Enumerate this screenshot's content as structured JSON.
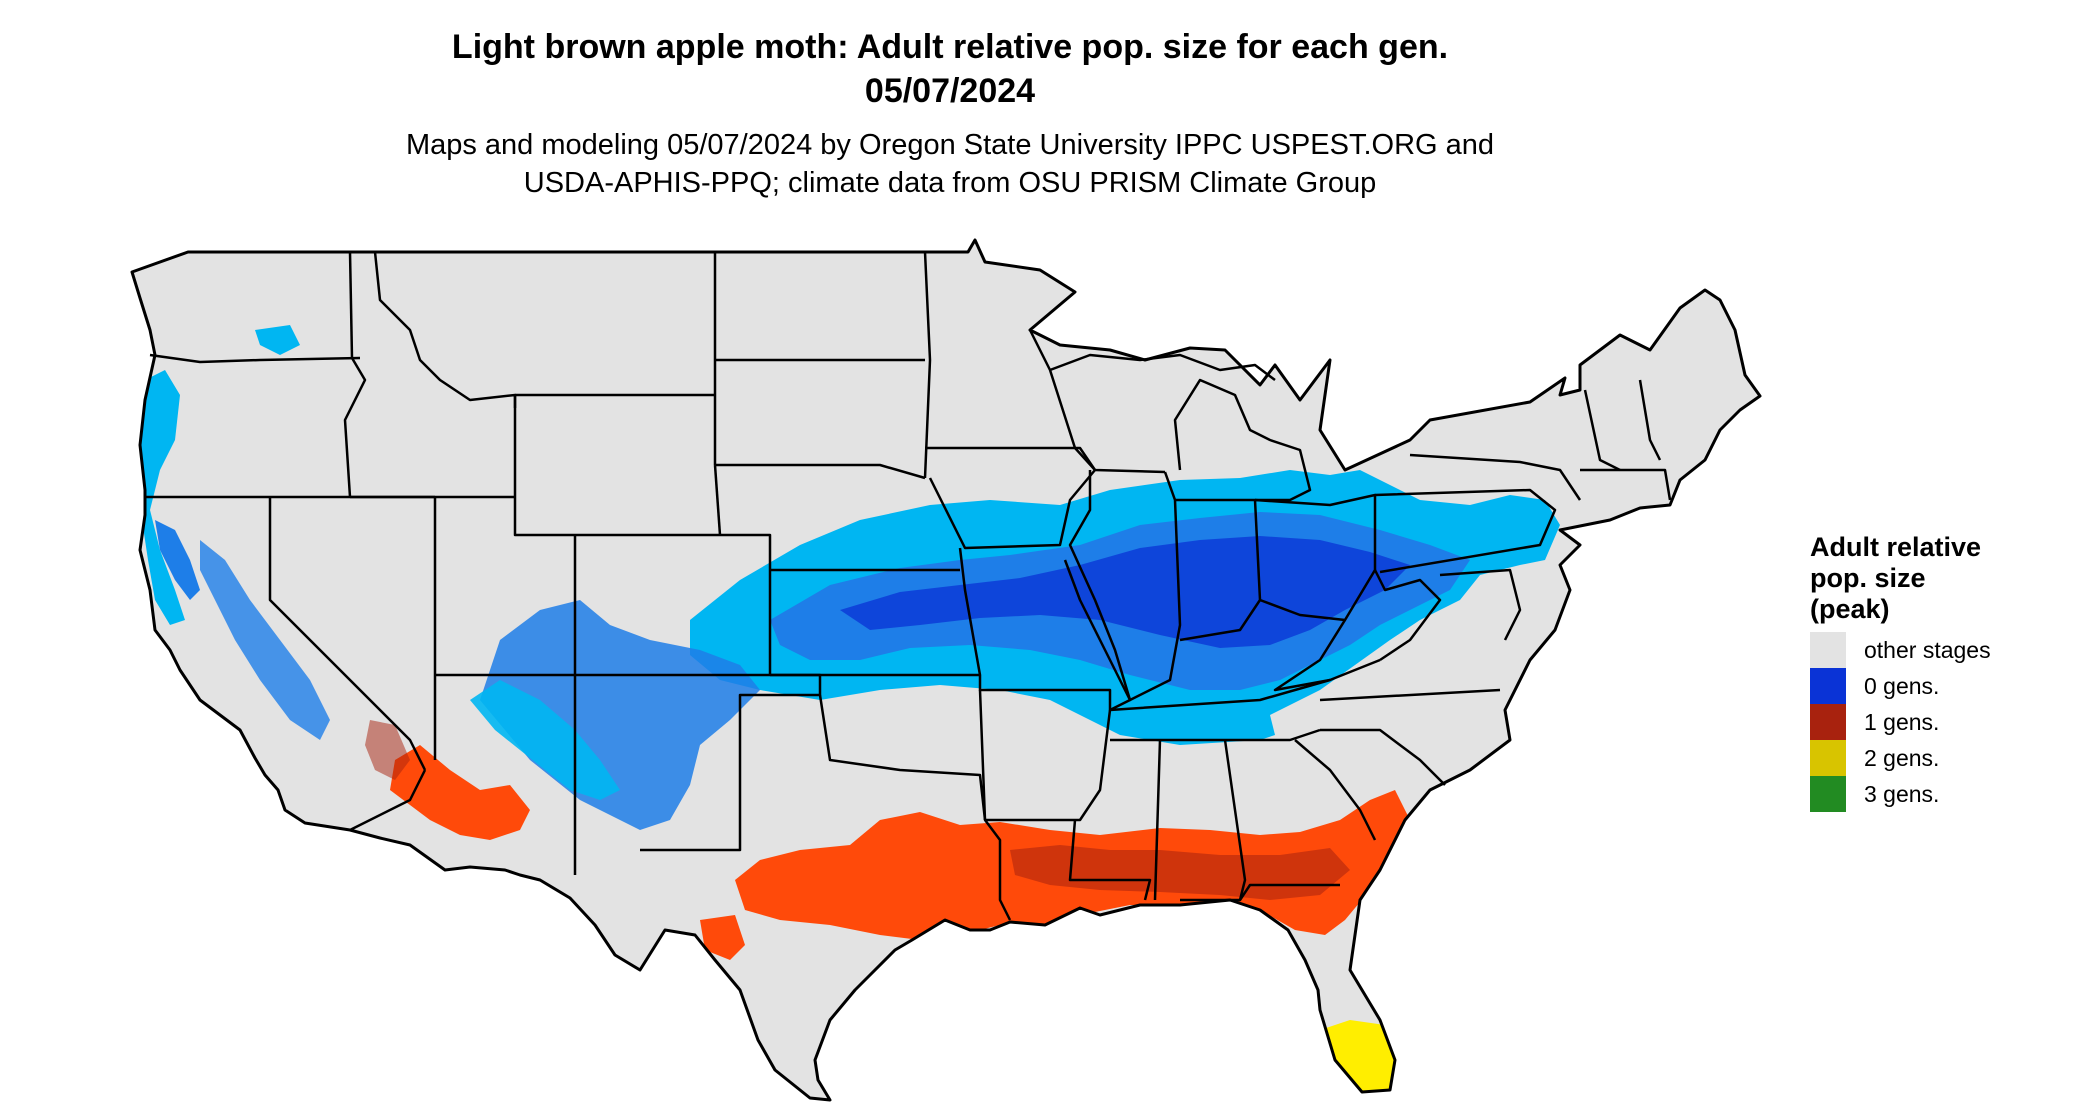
{
  "header": {
    "title_line1": "Light brown apple moth: Adult relative pop. size for each gen.",
    "title_line2": "05/07/2024",
    "subtitle_line1": "Maps and modeling 05/07/2024 by Oregon State University IPPC USPEST.ORG and",
    "subtitle_line2": "USDA-APHIS-PPQ; climate data from OSU PRISM Climate Group"
  },
  "legend": {
    "title_line1": "Adult relative",
    "title_line2": "pop. size",
    "title_line3": "(peak)",
    "items": [
      {
        "label": "other stages",
        "color": "#e3e3e3"
      },
      {
        "label": "0 gens.",
        "color": "#0a33d6"
      },
      {
        "label": "1 gens.",
        "color": "#a8220e"
      },
      {
        "label": "2 gens.",
        "color": "#d8c400"
      },
      {
        "label": "3 gens.",
        "color": "#228b22"
      }
    ]
  },
  "map": {
    "region": "Contiguous United States",
    "base_color": "#e3e3e3",
    "border_color": "#000000",
    "zone_colors": {
      "gen0_light": "#00b6f2",
      "gen0_mid": "#1e7ee8",
      "gen0_dark": "#0a33d6",
      "gen1_light": "#ff4a0a",
      "gen1_mid": "#e23a0c",
      "gen1_dark": "#a8220e",
      "gen2": "#ffee00"
    }
  }
}
